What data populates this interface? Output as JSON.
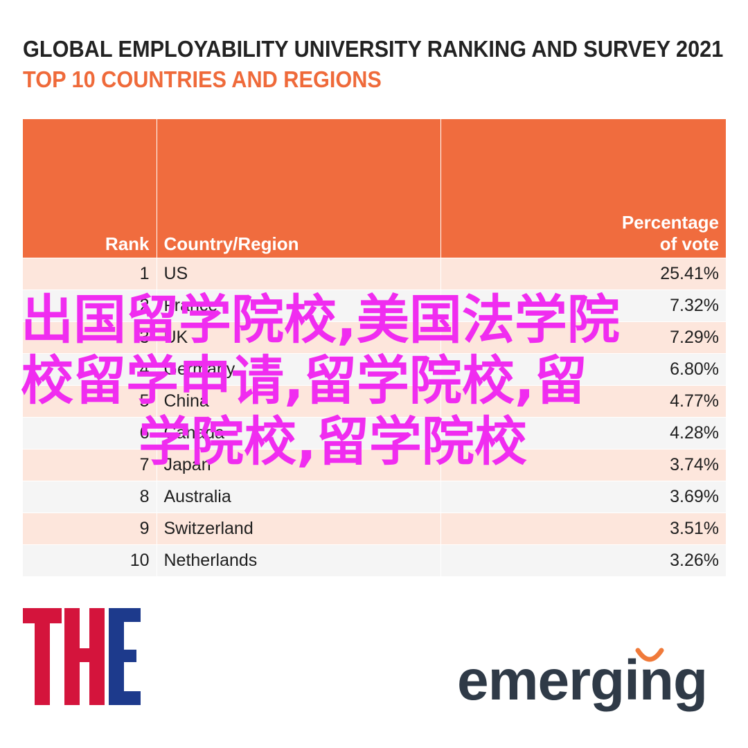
{
  "header": {
    "title": "GLOBAL EMPLOYABILITY UNIVERSITY RANKING AND SURVEY 2021",
    "subtitle": "TOP 10 COUNTRIES AND REGIONS"
  },
  "table": {
    "columns": {
      "rank": "Rank",
      "country": "Country/Region",
      "pct_line1": "Percentage",
      "pct_line2": "of vote"
    },
    "rows": [
      {
        "rank": "1",
        "country": "US",
        "pct": "25.41%"
      },
      {
        "rank": "2",
        "country": "France",
        "pct": "7.32%"
      },
      {
        "rank": "3",
        "country": "UK",
        "pct": "7.29%"
      },
      {
        "rank": "4",
        "country": "Germany",
        "pct": "6.80%"
      },
      {
        "rank": "5",
        "country": "China",
        "pct": "4.77%"
      },
      {
        "rank": "6",
        "country": "Canada",
        "pct": "4.28%"
      },
      {
        "rank": "7",
        "country": "Japan",
        "pct": "3.74%"
      },
      {
        "rank": "8",
        "country": "Australia",
        "pct": "3.69%"
      },
      {
        "rank": "9",
        "country": "Switzerland",
        "pct": "3.51%"
      },
      {
        "rank": "10",
        "country": "Netherlands",
        "pct": "3.26%"
      }
    ]
  },
  "overlay": {
    "line1": "出国留学院校,美国法学院",
    "line2": "校留学申请,留学院校,留",
    "line3": "学院校,留学院校"
  },
  "logos": {
    "the": "THE",
    "emerging": "emerging"
  },
  "colors": {
    "header_orange": "#f06c3e",
    "subtitle_orange": "#ef6a3a",
    "row_light_orange": "#fde6dc",
    "row_light_gray": "#f5f5f5",
    "watermark_magenta": "#f02cf0",
    "the_red": "#d4143c",
    "the_blue": "#1d3a8c",
    "emerging_text": "#2f3a47",
    "emerging_arc": "#f07a3a"
  }
}
